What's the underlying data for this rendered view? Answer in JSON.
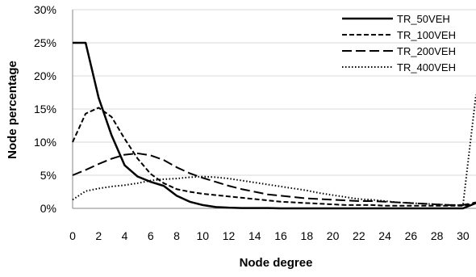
{
  "chart_data": {
    "type": "line",
    "title": "",
    "xlabel": "Node degree",
    "ylabel": "Node percentage",
    "xlim": [
      0,
      31
    ],
    "ylim": [
      0,
      30
    ],
    "x_ticks": [
      0,
      2,
      4,
      6,
      8,
      10,
      12,
      14,
      16,
      18,
      20,
      22,
      24,
      26,
      28,
      30
    ],
    "y_ticks": [
      0,
      5,
      10,
      15,
      20,
      25,
      30
    ],
    "y_tick_labels": [
      "0%",
      "5%",
      "10%",
      "15%",
      "20%",
      "25%",
      "30%"
    ],
    "grid": "horizontal",
    "legend_position": "top-right",
    "x": [
      0,
      1,
      2,
      3,
      4,
      5,
      6,
      7,
      8,
      9,
      10,
      11,
      12,
      13,
      14,
      15,
      16,
      17,
      18,
      19,
      20,
      21,
      22,
      23,
      24,
      25,
      26,
      27,
      28,
      29,
      30,
      31
    ],
    "series": [
      {
        "name": "TR_50VEH",
        "style": "solid",
        "values": [
          25,
          25,
          16.7,
          11,
          6.5,
          4.8,
          4,
          3.4,
          1.9,
          1,
          0.5,
          0.2,
          0.1,
          0.05,
          0.05,
          0.05,
          0,
          0,
          0,
          0,
          0,
          0,
          0,
          0,
          0,
          0,
          0,
          0,
          0,
          0,
          0,
          0.8
        ]
      },
      {
        "name": "TR_100VEH",
        "style": "short-dash",
        "values": [
          10,
          14.3,
          15.2,
          13.8,
          10.5,
          7.5,
          5.2,
          3.8,
          2.9,
          2.5,
          2.2,
          2,
          1.8,
          1.6,
          1.4,
          1.2,
          1,
          0.9,
          0.8,
          0.7,
          0.6,
          0.5,
          0.5,
          0.5,
          0.4,
          0.4,
          0.4,
          0.4,
          0.4,
          0.4,
          0.4,
          0.8
        ]
      },
      {
        "name": "TR_200VEH",
        "style": "long-dash",
        "values": [
          5,
          5.8,
          6.7,
          7.5,
          8.1,
          8.3,
          8,
          7.3,
          6.2,
          5.3,
          4.6,
          4,
          3.4,
          2.9,
          2.5,
          2.1,
          1.9,
          1.7,
          1.5,
          1.4,
          1.3,
          1.2,
          1.1,
          1.1,
          1,
          0.9,
          0.8,
          0.7,
          0.6,
          0.5,
          0.5,
          0.9
        ]
      },
      {
        "name": "TR_400VEH",
        "style": "dotted",
        "values": [
          1.3,
          2.6,
          3,
          3.3,
          3.5,
          3.8,
          4.2,
          4.4,
          4.5,
          4.7,
          4.8,
          4.7,
          4.5,
          4.2,
          3.9,
          3.6,
          3.3,
          3,
          2.7,
          2.3,
          2,
          1.7,
          1.4,
          1.3,
          1.1,
          0.9,
          0.8,
          0.7,
          0.6,
          0.5,
          0.5,
          17.2
        ]
      }
    ]
  }
}
